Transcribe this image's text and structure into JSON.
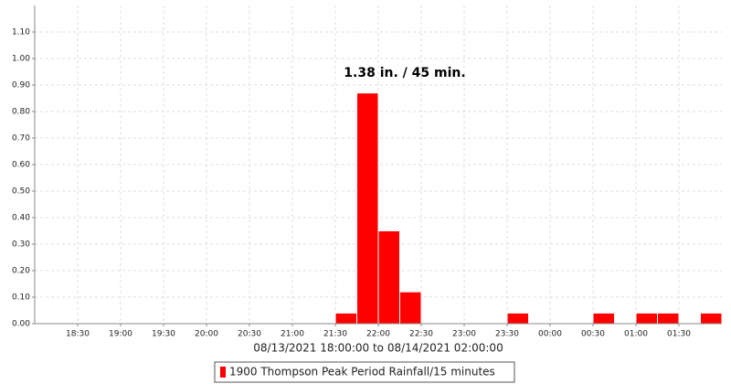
{
  "chart_data": {
    "type": "bar",
    "x_label": "08/13/2021 18:00:00 to 08/14/2021 02:00:00",
    "annotation": "1.38 in. / 45 min.",
    "series": [
      {
        "name": "1900 Thompson Peak Period Rainfall/15 minutes",
        "color": "#ff0000",
        "x_start": [
          "2021-08-13T21:30",
          "2021-08-13T21:45",
          "2021-08-13T22:00",
          "2021-08-13T22:15",
          "2021-08-13T23:30",
          "2021-08-14T00:30",
          "2021-08-14T01:00",
          "2021-08-14T01:15",
          "2021-08-14T01:45"
        ],
        "x_end": [
          "2021-08-13T21:45",
          "2021-08-13T22:00",
          "2021-08-13T22:15",
          "2021-08-13T22:30",
          "2021-08-13T23:45",
          "2021-08-14T00:45",
          "2021-08-14T01:15",
          "2021-08-14T01:30",
          "2021-08-14T02:00"
        ],
        "values": [
          0.04,
          0.87,
          0.35,
          0.12,
          0.04,
          0.04,
          0.04,
          0.04,
          0.04
        ]
      }
    ],
    "xlim": [
      "2021-08-13T18:00",
      "2021-08-14T02:00"
    ],
    "xticks": [
      {
        "value": "2021-08-13T18:30",
        "label": "18:30"
      },
      {
        "value": "2021-08-13T19:00",
        "label": "19:00"
      },
      {
        "value": "2021-08-13T19:30",
        "label": "19:30"
      },
      {
        "value": "2021-08-13T20:00",
        "label": "20:00"
      },
      {
        "value": "2021-08-13T20:30",
        "label": "20:30"
      },
      {
        "value": "2021-08-13T21:00",
        "label": "21:00"
      },
      {
        "value": "2021-08-13T21:30",
        "label": "21:30"
      },
      {
        "value": "2021-08-13T22:00",
        "label": "22:00"
      },
      {
        "value": "2021-08-13T22:30",
        "label": "22:30"
      },
      {
        "value": "2021-08-13T23:00",
        "label": "23:00"
      },
      {
        "value": "2021-08-13T23:30",
        "label": "23:30"
      },
      {
        "value": "2021-08-14T00:00",
        "label": "00:00"
      },
      {
        "value": "2021-08-14T00:30",
        "label": "00:30"
      },
      {
        "value": "2021-08-14T01:00",
        "label": "01:00"
      },
      {
        "value": "2021-08-14T01:30",
        "label": "01:30"
      }
    ],
    "ylim": [
      0,
      1.2
    ],
    "yticks": [
      {
        "value": 0,
        "label": "0.00"
      },
      {
        "value": 0.1,
        "label": "0.10"
      },
      {
        "value": 0.2,
        "label": "0.20"
      },
      {
        "value": 0.3,
        "label": "0.30"
      },
      {
        "value": 0.4,
        "label": "0.40"
      },
      {
        "value": 0.5,
        "label": "0.50"
      },
      {
        "value": 0.6,
        "label": "0.60"
      },
      {
        "value": 0.7,
        "label": "0.70"
      },
      {
        "value": 0.8,
        "label": "0.80"
      },
      {
        "value": 0.9,
        "label": "0.90"
      },
      {
        "value": 1.0,
        "label": "1.00"
      },
      {
        "value": 1.1,
        "label": "1.10"
      }
    ],
    "grid": true
  }
}
